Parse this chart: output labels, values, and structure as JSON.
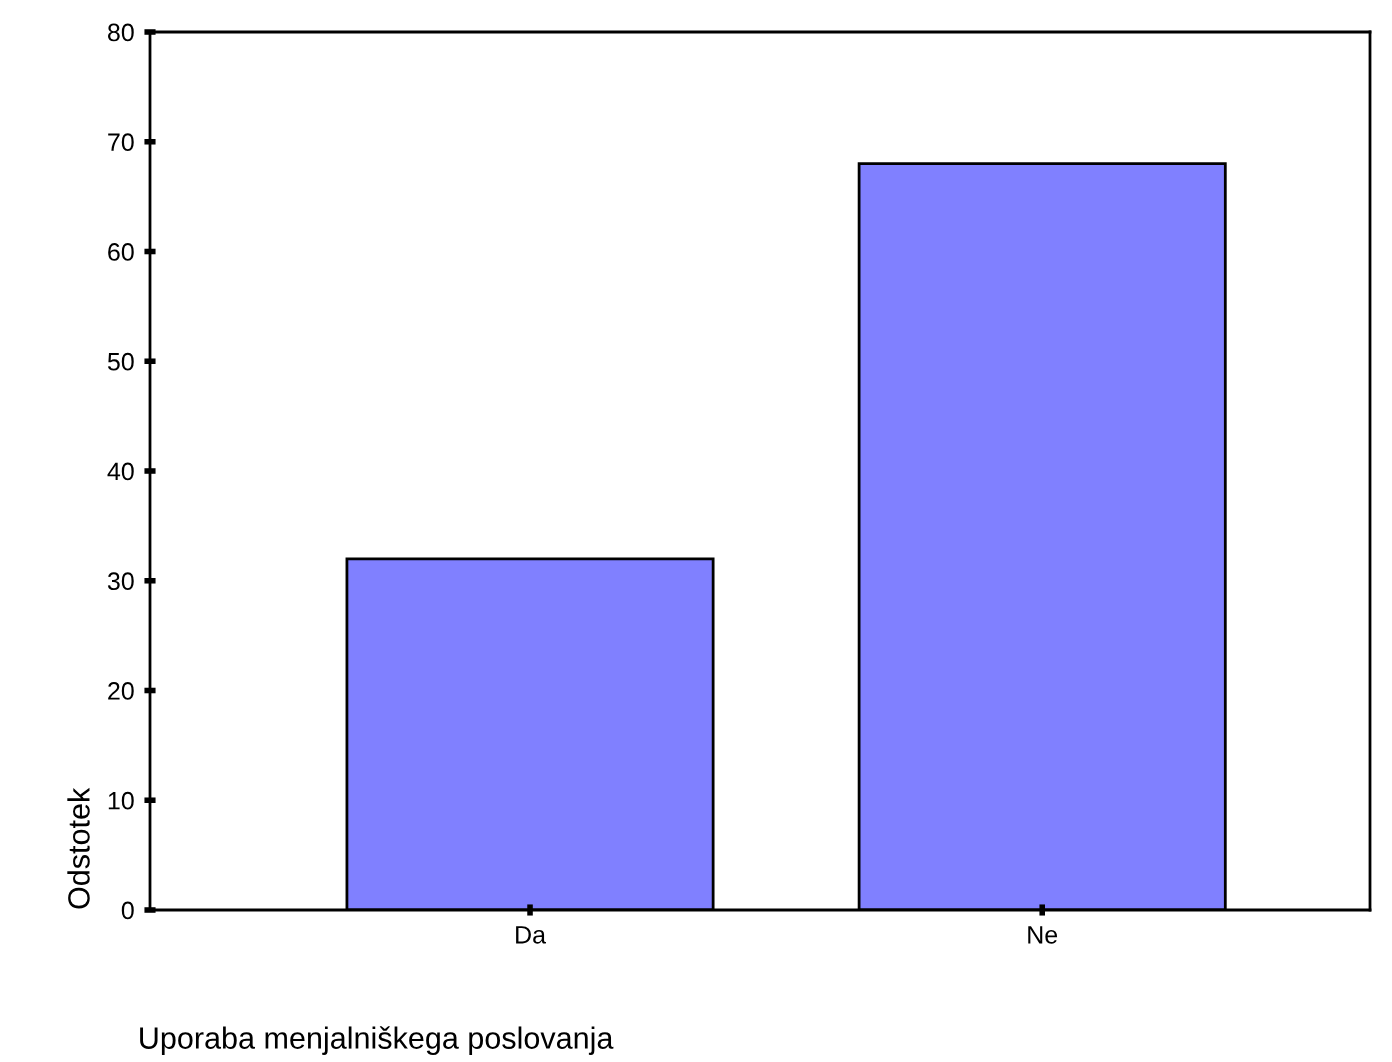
{
  "chart_data": {
    "type": "bar",
    "xlabel": "Uporaba menjalniškega poslovanja",
    "ylabel": "Odstotek",
    "categories": [
      "Da",
      "Ne"
    ],
    "values": [
      32,
      68
    ],
    "color": "#8080ff",
    "ylim": [
      0,
      80
    ],
    "yticks": [
      0,
      10,
      20,
      30,
      40,
      50,
      60,
      70,
      80
    ],
    "grid": false,
    "legend": false
  }
}
